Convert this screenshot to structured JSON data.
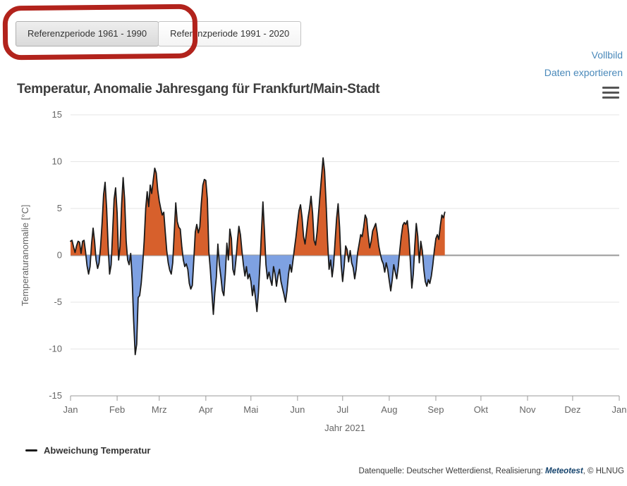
{
  "tabs": [
    {
      "label": "Referenzperiode 1961 - 1990",
      "active": true
    },
    {
      "label": "Referenzperiode 1991 - 2020",
      "active": false
    }
  ],
  "actions": {
    "fullscreen_link": "Vollbild",
    "export_link": "Daten exportieren"
  },
  "annotation": {
    "shape": "hand-drawn-red-circle",
    "color": "#b2231c",
    "target": "Referenzperiode 1961 - 1990"
  },
  "chart": {
    "title": "Temperatur, Anomalie Jahresgang für Frankfurt/Main-Stadt"
  },
  "legend": {
    "label": "Abweichung Temperatur"
  },
  "footer": {
    "prefix": "Datenquelle: Deutscher Wetterdienst, Realisierung: ",
    "brand": "Meteotest",
    "suffix": ", © HLNUG"
  },
  "chart_data": {
    "type": "area",
    "title": "Temperatur, Anomalie Jahresgang für Frankfurt/Main-Stadt",
    "xlabel": "Jahr 2021",
    "ylabel": "Temperaturanomalie [°C]",
    "ylim": [
      -15,
      15
    ],
    "yticks": [
      -15,
      -10,
      -5,
      0,
      5,
      10,
      15
    ],
    "grid": true,
    "legend_position": "bottom-left",
    "x_axis": {
      "tick_labels": [
        "Jan",
        "Feb",
        "Mrz",
        "Apr",
        "Mai",
        "Jun",
        "Jul",
        "Aug",
        "Sep",
        "Okt",
        "Nov",
        "Dez",
        "Jan"
      ],
      "tick_day_positions": [
        0,
        31,
        59,
        90,
        120,
        151,
        181,
        212,
        243,
        273,
        304,
        334,
        365
      ],
      "days_in_year": 365
    },
    "series": [
      {
        "name": "Abweichung Temperatur",
        "unit": "°C",
        "frequency": "daily",
        "start_day": 0,
        "values": [
          1.5,
          1.6,
          0.9,
          0.3,
          1.0,
          1.5,
          1.4,
          0.2,
          1.5,
          1.6,
          0.4,
          -1.1,
          -2.0,
          -1.2,
          1.2,
          2.9,
          1.5,
          -0.5,
          -1.4,
          -0.8,
          0.9,
          3.5,
          6.5,
          7.8,
          5.0,
          1.0,
          -2.0,
          -1.0,
          2.5,
          6.0,
          7.2,
          4.5,
          -0.5,
          1.0,
          5.5,
          8.3,
          6.0,
          1.5,
          -0.5,
          -1.0,
          0.2,
          -2.5,
          -7.0,
          -10.6,
          -9.5,
          -4.5,
          -4.3,
          -3.0,
          -1.0,
          1.5,
          5.0,
          6.8,
          5.2,
          7.5,
          6.6,
          8.0,
          9.3,
          8.8,
          7.0,
          5.8,
          5.0,
          4.3,
          4.6,
          2.5,
          0.5,
          -0.8,
          -1.6,
          -2.0,
          -0.8,
          2.5,
          5.6,
          3.6,
          3.0,
          2.8,
          1.0,
          -0.5,
          -1.2,
          -0.9,
          -1.5,
          -3.0,
          -3.6,
          -3.2,
          -0.5,
          2.5,
          3.3,
          2.4,
          3.0,
          5.5,
          7.5,
          8.1,
          8.0,
          6.0,
          0.4,
          -1.5,
          -4.0,
          -6.3,
          -4.0,
          -2.3,
          1.2,
          -1.0,
          -2.3,
          -3.8,
          -4.3,
          -2.0,
          1.3,
          -0.5,
          2.8,
          1.8,
          -1.5,
          -2.1,
          -0.5,
          1.5,
          3.1,
          2.2,
          0.5,
          -1.0,
          -2.2,
          -1.2,
          -2.5,
          -2.0,
          -2.8,
          -4.3,
          -3.2,
          -4.5,
          -6.0,
          -4.0,
          -1.0,
          2.5,
          5.7,
          2.5,
          -1.0,
          -2.5,
          -1.8,
          -2.6,
          -3.2,
          -1.2,
          -2.0,
          -3.3,
          -2.2,
          -1.5,
          -2.8,
          -3.5,
          -4.2,
          -5.0,
          -3.8,
          -2.0,
          -1.0,
          -1.8,
          -0.5,
          0.8,
          2.0,
          3.5,
          4.8,
          5.4,
          4.0,
          2.0,
          1.2,
          2.5,
          4.0,
          5.0,
          6.3,
          4.5,
          1.6,
          1.1,
          2.5,
          4.5,
          6.5,
          8.5,
          10.4,
          9.0,
          5.5,
          1.5,
          -1.5,
          -0.5,
          -2.3,
          -1.0,
          1.5,
          4.0,
          5.5,
          3.0,
          -1.0,
          -2.8,
          -1.2,
          1.0,
          0.6,
          -0.7,
          0.5,
          -0.8,
          -1.3,
          -2.5,
          -1.5,
          0.3,
          1.2,
          2.2,
          2.0,
          3.0,
          4.3,
          3.9,
          2.2,
          0.8,
          1.5,
          2.6,
          3.0,
          3.4,
          2.4,
          1.0,
          0.2,
          -0.5,
          -0.9,
          -1.8,
          -0.8,
          -1.5,
          -2.7,
          -3.8,
          -2.6,
          -1.0,
          -1.8,
          -2.5,
          -1.2,
          0.5,
          2.0,
          3.2,
          3.5,
          3.3,
          3.7,
          2.2,
          -0.5,
          -3.5,
          -2.0,
          1.0,
          3.4,
          2.0,
          -0.8,
          1.5,
          0.5,
          -1.5,
          -2.8,
          -3.3,
          -2.6,
          -3.0,
          -2.2,
          -1.0,
          0.5,
          1.8,
          2.2,
          1.7,
          3.2,
          4.3,
          4.0,
          4.6
        ]
      }
    ],
    "colors": {
      "line": "#1a1a1a",
      "positive_fill": "#d7602c",
      "negative_fill": "#7ea1e2",
      "grid": "#e6e6e6",
      "zero_line": "#999999",
      "axis": "#999999",
      "tick_label": "#666666"
    }
  }
}
